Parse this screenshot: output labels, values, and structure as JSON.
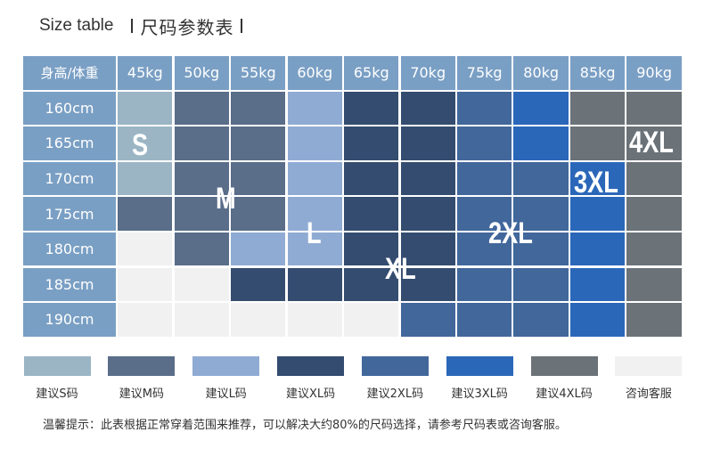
{
  "header": {
    "title_en": "Size table",
    "title_cn": "尺码参数表"
  },
  "table": {
    "corner_label": "身高/体重",
    "weights": [
      "45kg",
      "50kg",
      "55kg",
      "60kg",
      "65kg",
      "70kg",
      "75kg",
      "80kg",
      "85kg",
      "90kg"
    ],
    "heights": [
      "160cm",
      "165cm",
      "170cm",
      "175cm",
      "180cm",
      "185cm",
      "190cm"
    ],
    "cells": [
      [
        "S",
        "M",
        "M",
        "L",
        "XL",
        "XL",
        "2XL",
        "3XL",
        "4XL",
        "4XL"
      ],
      [
        "S",
        "M",
        "M",
        "L",
        "XL",
        "XL",
        "2XL",
        "3XL",
        "4XL",
        "4XL"
      ],
      [
        "S",
        "M",
        "M",
        "L",
        "XL",
        "XL",
        "2XL",
        "2XL",
        "3XL",
        "4XL"
      ],
      [
        "M",
        "M",
        "M",
        "L",
        "XL",
        "XL",
        "2XL",
        "2XL",
        "3XL",
        "4XL"
      ],
      [
        "none",
        "M",
        "L",
        "L",
        "XL",
        "XL",
        "2XL",
        "2XL",
        "3XL",
        "4XL"
      ],
      [
        "none",
        "none",
        "XL",
        "XL",
        "XL",
        "XL",
        "2XL",
        "2XL",
        "3XL",
        "4XL"
      ],
      [
        "none",
        "none",
        "none",
        "none",
        "none",
        "2XL",
        "2XL",
        "2XL",
        "3XL",
        "4XL"
      ]
    ],
    "size_labels": [
      "S",
      "M",
      "L",
      "XL",
      "2XL",
      "3XL",
      "4XL"
    ]
  },
  "colors": {
    "S": "#9bb5c4",
    "M": "#5a6d89",
    "L": "#8fabd3",
    "XL": "#344c6f",
    "2XL": "#42679b",
    "3XL": "#2b67b9",
    "4XL": "#6b7278",
    "none": "#f1f1f1",
    "header": "#7a9fc4"
  },
  "legend": [
    {
      "key": "S",
      "label": "建议S码"
    },
    {
      "key": "M",
      "label": "建议M码"
    },
    {
      "key": "L",
      "label": "建议L码"
    },
    {
      "key": "XL",
      "label": "建议XL码"
    },
    {
      "key": "2XL",
      "label": "建议2XL码"
    },
    {
      "key": "3XL",
      "label": "建议3XL码"
    },
    {
      "key": "4XL",
      "label": "建议4XL码"
    },
    {
      "key": "none",
      "label": "咨询客服"
    }
  ],
  "note": "温馨提示：此表根据正常穿着范围来推荐，可以解决大约80%的尺码选择，请参考尺码表或咨询客服。"
}
